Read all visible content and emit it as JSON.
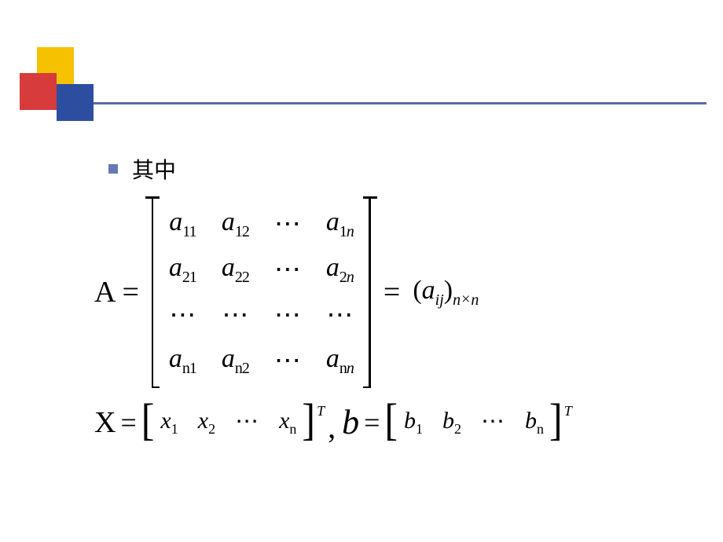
{
  "colors": {
    "yellow": "#f6c200",
    "red": "#d73b3b",
    "blue": "#2d4ea0",
    "rule": "#5a6aa8",
    "bullet": "#6678b8",
    "text": "#000000"
  },
  "bullet_text": "其中",
  "eq1": {
    "lhs": "A",
    "cells": {
      "r1c1_base": "a",
      "r1c1_sub": "11",
      "r1c2_base": "a",
      "r1c2_sub": "12",
      "r1c3": "⋯",
      "r1c4_base": "a",
      "r1c4_sub_pre": "1",
      "r1c4_sub_n": "n",
      "r2c1_base": "a",
      "r2c1_sub": "21",
      "r2c2_base": "a",
      "r2c2_sub": "22",
      "r2c3": "⋯",
      "r2c4_base": "a",
      "r2c4_sub_pre": "2",
      "r2c4_sub_n": "n",
      "r3c1": "⋯",
      "r3c2": "⋯",
      "r3c3": "⋯",
      "r3c4": "⋯",
      "r4c1_base": "a",
      "r4c1_sub_pre": "n",
      "r4c1_sub_num": "1",
      "r4c2_base": "a",
      "r4c2_sub_pre": "n",
      "r4c2_sub_num": "2",
      "r4c3": "⋯",
      "r4c4_base": "a",
      "r4c4_sub_pre": "n",
      "r4c4_sub_n": "n"
    },
    "rhs_open": "(",
    "rhs_a": "a",
    "rhs_ij": "ij",
    "rhs_close": ")",
    "rhs_sub_n1": "n",
    "rhs_sub_times": "×",
    "rhs_sub_n2": "n",
    "equals": "="
  },
  "eq2": {
    "X": "X",
    "equals": "=",
    "lb": "[",
    "rb": "]",
    "x_base": "x",
    "x1_sub": "1",
    "x2_sub": "2",
    "xdots": "⋯",
    "xn_sub": "n",
    "T": "T",
    "comma": ",",
    "b": "b",
    "b_base": "b",
    "b1_sub": "1",
    "b2_sub": "2",
    "bdots": "⋯",
    "bn_sub": "n"
  }
}
